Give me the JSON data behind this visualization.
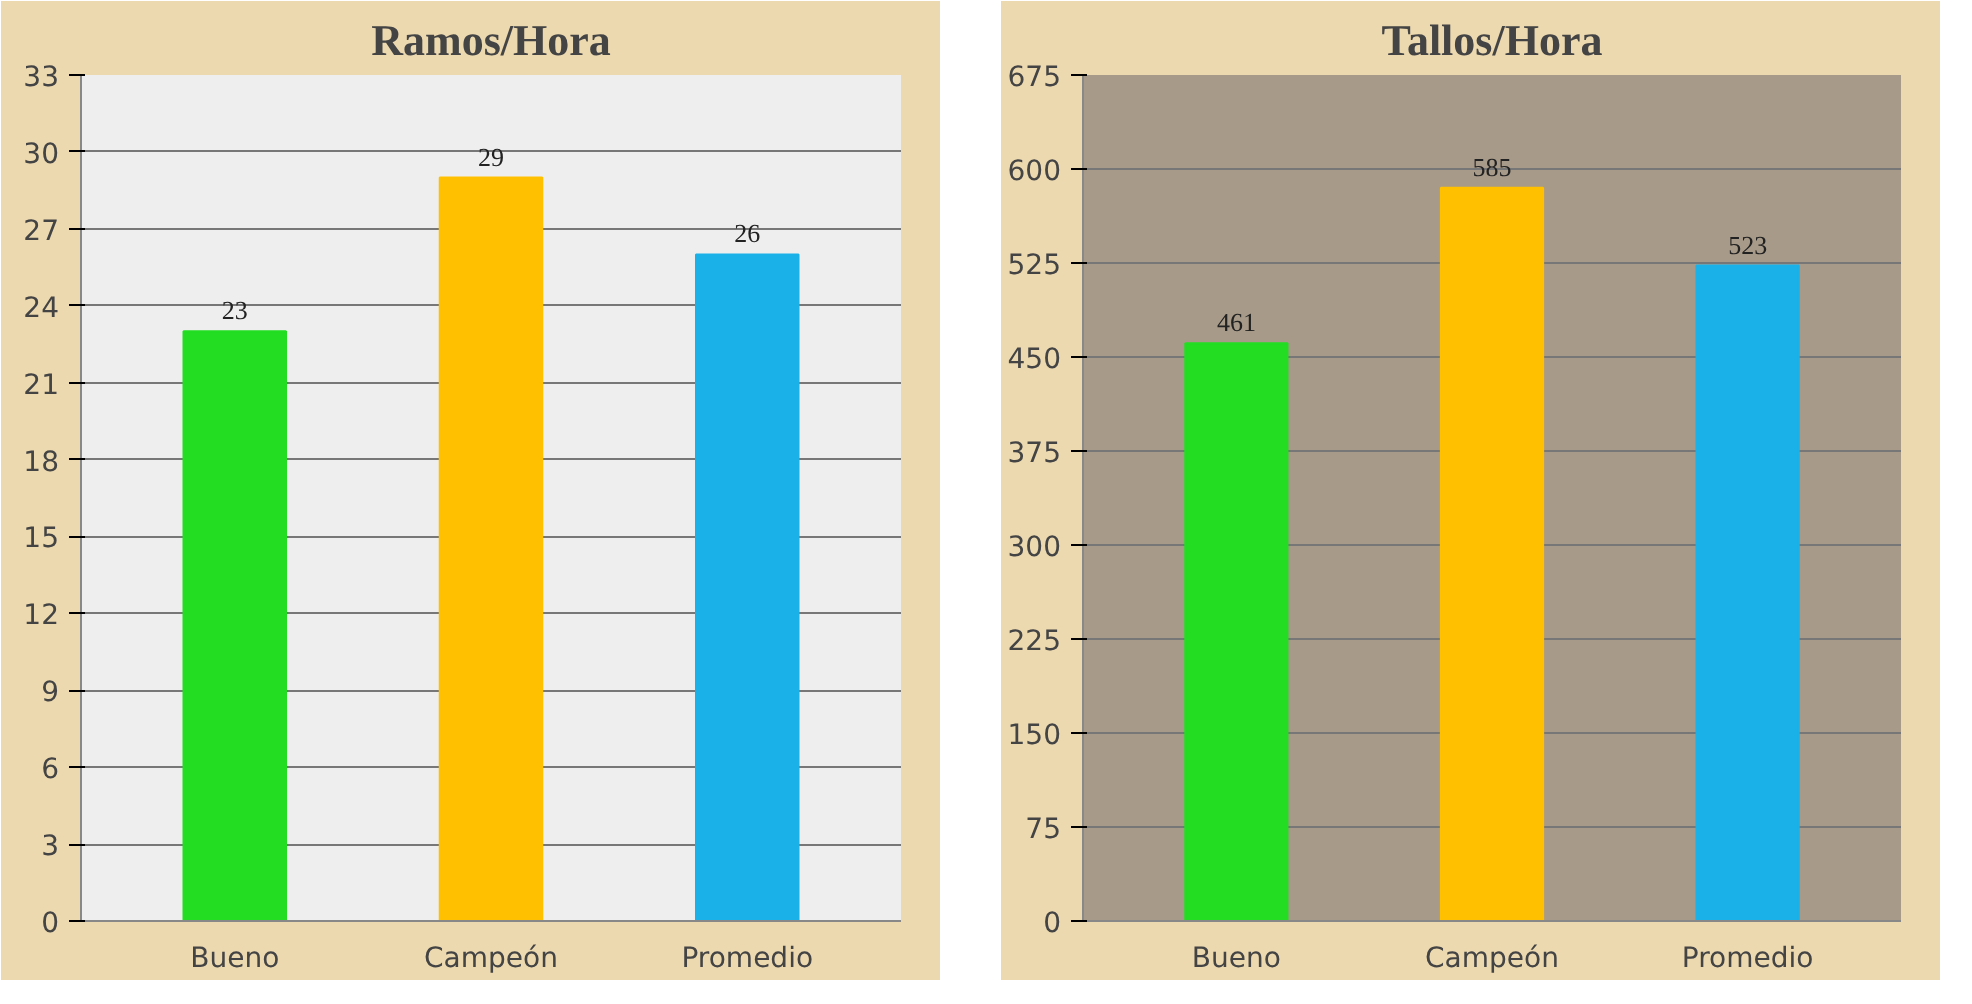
{
  "chart_data": [
    {
      "type": "bar",
      "title": "Ramos/Hora",
      "categories": [
        "Bueno",
        "Campeón",
        "Promedio"
      ],
      "values": [
        23,
        29,
        26
      ],
      "colors": [
        "#22dd22",
        "#ffc000",
        "#1ab0e8"
      ],
      "ylim": [
        0,
        33
      ],
      "yticks": [
        0,
        3,
        6,
        9,
        12,
        15,
        18,
        21,
        24,
        27,
        30,
        33
      ],
      "grid": "y",
      "data_labels": true
    },
    {
      "type": "bar",
      "title": "Tallos/Hora",
      "categories": [
        "Bueno",
        "Campeón",
        "Promedio"
      ],
      "values": [
        461,
        585,
        523
      ],
      "colors": [
        "#22dd22",
        "#ffc000",
        "#1ab0e8"
      ],
      "ylim": [
        0,
        675
      ],
      "yticks": [
        0,
        75,
        150,
        225,
        300,
        375,
        450,
        525,
        600,
        675
      ],
      "grid": "y",
      "data_labels": true
    }
  ]
}
